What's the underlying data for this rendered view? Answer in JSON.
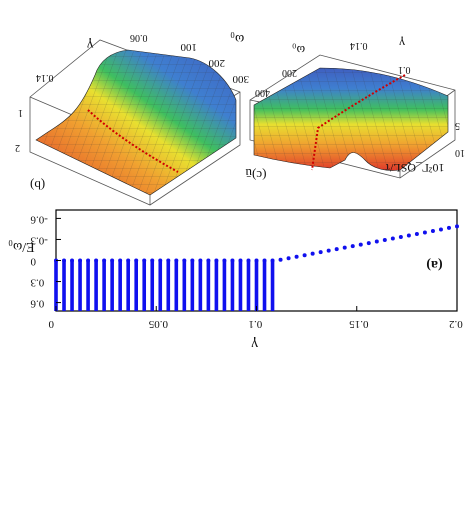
{
  "panel_b": {
    "label": "(b)",
    "axis_gamma": "γ",
    "axis_omega": "ω₀",
    "axis_side": "ū",
    "gamma_ticks": [
      "0.14",
      "0.06"
    ],
    "omega_ticks": [
      "100",
      "200",
      "300"
    ],
    "z_ticks": [
      "1",
      "2"
    ]
  },
  "panel_c": {
    "label": "(c)",
    "axis_gamma": "γ",
    "axis_omega": "ω₀",
    "axis_z": "10²Γ_QSL/τ",
    "gamma_ticks": [
      "0.14",
      "0.1"
    ],
    "omega_ticks": [
      "200",
      "400"
    ],
    "z_ticks": [
      "5",
      "10"
    ]
  },
  "colors": {
    "dots": "#1010ee",
    "line_red": "#d00000",
    "surface_high": "#3f5fc0",
    "surface_mid": "#e8e030",
    "surface_low": "#e03a2a"
  },
  "chart_data": {
    "type": "scatter",
    "panel": "(a)",
    "xlabel": "γ",
    "ylabel": "E/ω₀",
    "xlim": [
      0,
      0.2
    ],
    "ylim": [
      -0.72,
      0.72
    ],
    "x_ticks": [
      0,
      0.05,
      0.1,
      0.15,
      0.2
    ],
    "x_tick_labels": [
      "0",
      "0.05",
      "0.1",
      "0.15",
      "0.2"
    ],
    "y_ticks": [
      -0.6,
      -0.3,
      0,
      0.3,
      0.6
    ],
    "y_tick_labels": [
      "-0.6",
      "-0.3",
      "0",
      "0.3",
      "0.6"
    ],
    "series": [
      {
        "kind": "imaginary-part",
        "gamma_start": 0.0,
        "gamma_end": 0.2,
        "gamma_step": 0.004,
        "values_below_gamma": 0.11,
        "value_before": 0,
        "values_after_gamma": 0.11,
        "slope_after": -5.4
      },
      {
        "kind": "real-part-column",
        "gamma_start": 0.0,
        "gamma_end": 0.11,
        "gamma_step": 0.004,
        "range_low": 0,
        "range_high": 0.72
      }
    ]
  }
}
